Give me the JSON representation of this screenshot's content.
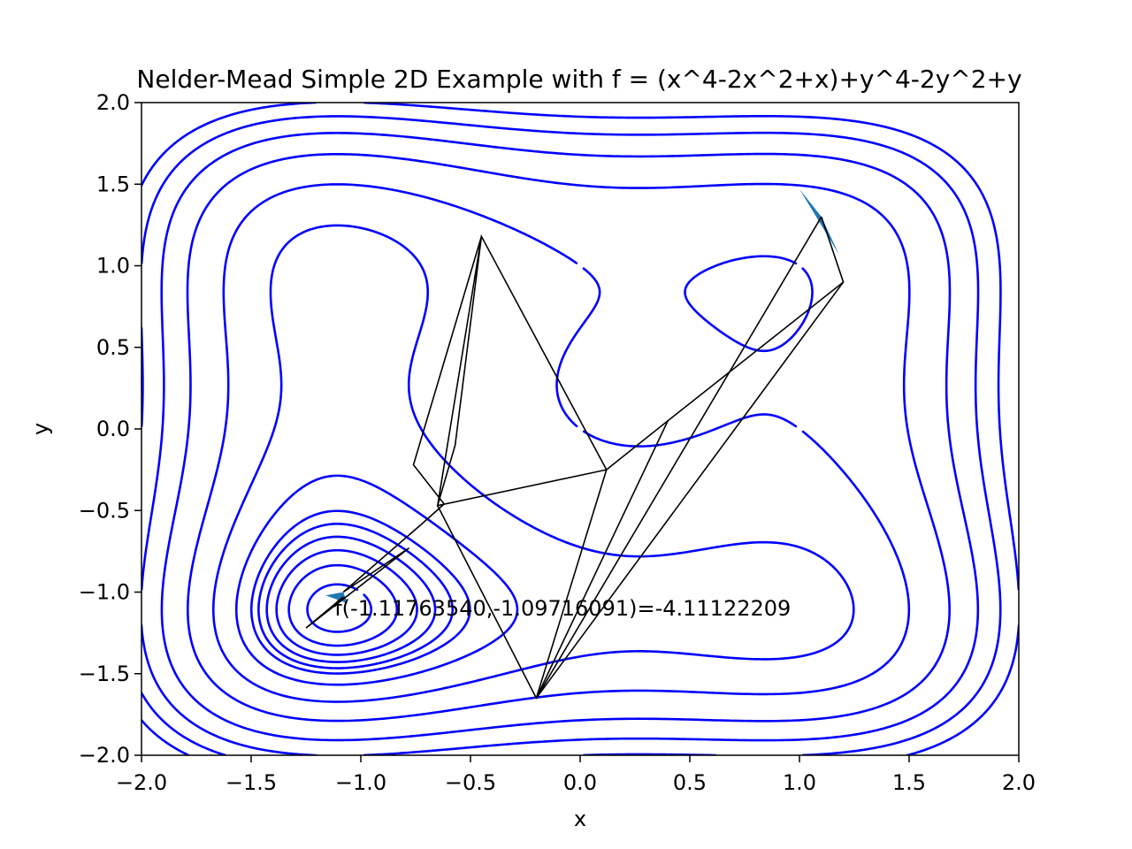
{
  "chart_data": {
    "type": "line",
    "title": "Nelder-Mead Simple 2D Example with f = (x^4-2x^2+x)+y^4-2y^2+y",
    "xlabel": "x",
    "ylabel": "y",
    "xlim": [
      -2.0,
      2.0
    ],
    "ylim": [
      -2.0,
      2.0
    ],
    "xticks": [
      -2.0,
      -1.5,
      -1.0,
      -0.5,
      0.0,
      0.5,
      1.0,
      1.5,
      2.0
    ],
    "yticks": [
      -2.0,
      -1.5,
      -1.0,
      -0.5,
      0.0,
      0.5,
      1.0,
      1.5,
      2.0
    ],
    "xtick_labels": [
      "−2.0",
      "−1.5",
      "−1.0",
      "−0.5",
      "0.0",
      "0.5",
      "1.0",
      "1.5",
      "2.0"
    ],
    "ytick_labels": [
      "−2.0",
      "−1.5",
      "−1.0",
      "−0.5",
      "0.0",
      "0.5",
      "1.0",
      "1.5",
      "2.0"
    ],
    "grid": false,
    "contour_levels": [
      -4.0,
      -3.8,
      -3.6,
      -3.4,
      -3.2,
      -3.0,
      -2.5,
      -1.5,
      0.0,
      2.0,
      4.0,
      6.0,
      8.0
    ],
    "contour_color": "#0000ff",
    "simplex_color": "#000000",
    "highlight_color": "#1f77b4",
    "simplex_path": [
      [
        1.1,
        1.3
      ],
      [
        1.2,
        0.9
      ],
      [
        0.4,
        0.05
      ],
      [
        0.12,
        -0.25
      ],
      [
        -0.45,
        1.18
      ],
      [
        -0.57,
        -0.1
      ],
      [
        -0.65,
        -0.47
      ],
      [
        0.12,
        -0.25
      ],
      [
        -0.2,
        -1.65
      ],
      [
        1.2,
        0.9
      ],
      [
        -0.2,
        -1.65
      ],
      [
        -0.65,
        -0.47
      ],
      [
        -0.45,
        1.18
      ],
      [
        -0.76,
        -0.22
      ],
      [
        -0.62,
        -0.46
      ],
      [
        -0.72,
        -0.58
      ],
      [
        -1.08,
        -1.0
      ],
      [
        -0.78,
        -0.73
      ],
      [
        -1.25,
        -1.22
      ],
      [
        -1.08,
        -1.03
      ],
      [
        -1.12,
        -1.09
      ]
    ],
    "simplex_segments": [
      [
        [
          0.4,
          0.05
        ],
        [
          -0.2,
          -1.65
        ]
      ],
      [
        [
          1.1,
          1.3
        ],
        [
          -0.2,
          -1.65
        ]
      ]
    ],
    "start_simplex": [
      [
        1.0,
        1.47
      ],
      [
        1.1,
        1.3
      ],
      [
        1.18,
        1.07
      ]
    ],
    "final_simplex": [
      [
        -1.16,
        -1.02
      ],
      [
        -1.08,
        -1.0
      ],
      [
        -1.06,
        -1.07
      ]
    ],
    "annotation": {
      "text": "f(-1.11763540,-1.09716091)=-4.11122209",
      "x": -1.12,
      "y": -1.1
    }
  }
}
